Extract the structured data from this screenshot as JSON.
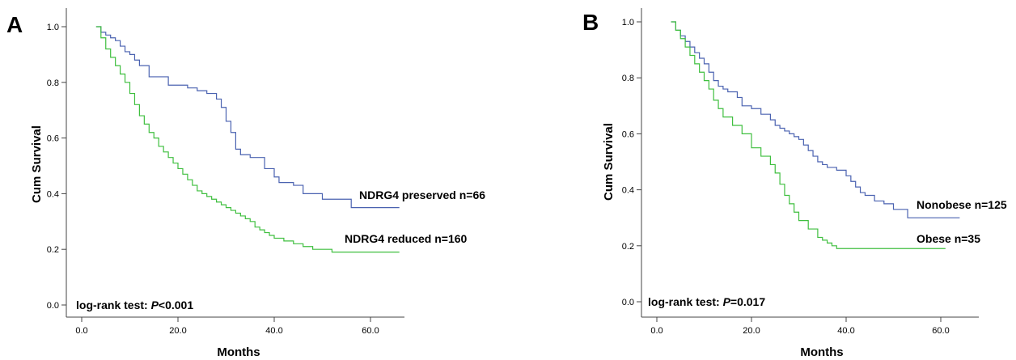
{
  "chart_data": [
    {
      "type": "line",
      "panel_label": "A",
      "xlabel": "Months",
      "ylabel": "Cum Survival",
      "xlim": [
        0,
        70
      ],
      "ylim": [
        0,
        1.05
      ],
      "x_ticks": [
        "0.0",
        "20.0",
        "40.0",
        "60.0"
      ],
      "y_ticks": [
        "0.0",
        "0.2",
        "0.4",
        "0.6",
        "0.8",
        "1.0"
      ],
      "annotation": {
        "prefix": "log-rank test: ",
        "p": "P",
        "value": "<0.001"
      },
      "series": [
        {
          "name": "NDRG4 preserved n=66",
          "color": "#4a62b0",
          "x": [
            3,
            4,
            5,
            6,
            7,
            8,
            9,
            10,
            11,
            12,
            14,
            18,
            22,
            24,
            26,
            28,
            29,
            30,
            31,
            32,
            33,
            35,
            38,
            40,
            41,
            44,
            46,
            50,
            56,
            66
          ],
          "y": [
            1.0,
            0.98,
            0.97,
            0.96,
            0.95,
            0.93,
            0.91,
            0.9,
            0.88,
            0.86,
            0.82,
            0.79,
            0.78,
            0.77,
            0.76,
            0.74,
            0.71,
            0.66,
            0.62,
            0.56,
            0.54,
            0.53,
            0.49,
            0.46,
            0.44,
            0.43,
            0.4,
            0.38,
            0.35,
            0.35
          ]
        },
        {
          "name": "NDRG4 reduced n=160",
          "color": "#3fbf3f",
          "x": [
            3,
            4,
            5,
            6,
            7,
            8,
            9,
            10,
            11,
            12,
            13,
            14,
            15,
            16,
            17,
            18,
            19,
            20,
            21,
            22,
            23,
            24,
            25,
            26,
            27,
            28,
            29,
            30,
            31,
            32,
            33,
            34,
            35,
            36,
            37,
            38,
            39,
            40,
            42,
            44,
            46,
            48,
            52,
            66
          ],
          "y": [
            1.0,
            0.96,
            0.92,
            0.89,
            0.86,
            0.83,
            0.8,
            0.76,
            0.72,
            0.68,
            0.65,
            0.62,
            0.6,
            0.57,
            0.55,
            0.53,
            0.51,
            0.49,
            0.47,
            0.45,
            0.43,
            0.41,
            0.4,
            0.39,
            0.38,
            0.37,
            0.36,
            0.35,
            0.34,
            0.33,
            0.32,
            0.31,
            0.3,
            0.28,
            0.27,
            0.26,
            0.25,
            0.24,
            0.23,
            0.22,
            0.21,
            0.2,
            0.19,
            0.19
          ]
        }
      ]
    },
    {
      "type": "line",
      "panel_label": "B",
      "xlabel": "Months",
      "ylabel": "Cum Survival",
      "xlim": [
        0,
        70
      ],
      "ylim": [
        0,
        1.03
      ],
      "x_ticks": [
        "0.0",
        "20.0",
        "40.0",
        "60.0"
      ],
      "y_ticks": [
        "0.0",
        "0.2",
        "0.4",
        "0.6",
        "0.8",
        "1.0"
      ],
      "annotation": {
        "prefix": "log-rank test: ",
        "p": "P",
        "value": "=0.017"
      },
      "series": [
        {
          "name": "Nonobese n=125",
          "color": "#4a62b0",
          "x": [
            3,
            4,
            5,
            6,
            7,
            8,
            9,
            10,
            11,
            12,
            13,
            14,
            15,
            17,
            18,
            20,
            22,
            24,
            25,
            26,
            27,
            28,
            29,
            30,
            31,
            32,
            33,
            34,
            35,
            36,
            38,
            40,
            41,
            42,
            43,
            44,
            46,
            48,
            50,
            53,
            64
          ],
          "y": [
            1.0,
            0.97,
            0.95,
            0.93,
            0.91,
            0.89,
            0.87,
            0.85,
            0.82,
            0.79,
            0.77,
            0.76,
            0.75,
            0.73,
            0.7,
            0.69,
            0.67,
            0.65,
            0.63,
            0.62,
            0.61,
            0.6,
            0.59,
            0.58,
            0.56,
            0.54,
            0.52,
            0.5,
            0.49,
            0.48,
            0.47,
            0.45,
            0.43,
            0.41,
            0.39,
            0.38,
            0.36,
            0.35,
            0.33,
            0.3,
            0.3
          ]
        },
        {
          "name": "Obese n=35",
          "color": "#3fbf3f",
          "x": [
            3,
            4,
            5,
            6,
            7,
            8,
            9,
            10,
            11,
            12,
            13,
            14,
            16,
            18,
            20,
            22,
            24,
            25,
            26,
            27,
            28,
            29,
            30,
            32,
            34,
            35,
            36,
            37,
            38,
            61
          ],
          "y": [
            1.0,
            0.97,
            0.94,
            0.91,
            0.88,
            0.85,
            0.82,
            0.79,
            0.76,
            0.72,
            0.69,
            0.66,
            0.63,
            0.6,
            0.55,
            0.52,
            0.49,
            0.46,
            0.42,
            0.38,
            0.35,
            0.32,
            0.29,
            0.26,
            0.23,
            0.22,
            0.21,
            0.2,
            0.19,
            0.19
          ]
        }
      ]
    }
  ]
}
